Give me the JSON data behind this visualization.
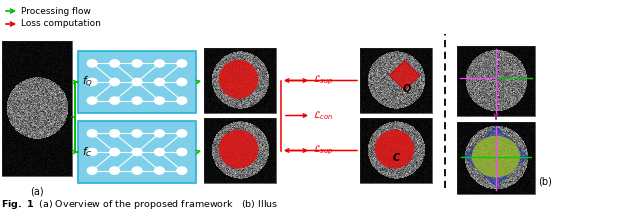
{
  "fig_width": 6.4,
  "fig_height": 2.16,
  "dpi": 100,
  "bg_color": "#ffffff",
  "net_color": "#7ecfea",
  "net_border": "#29afd4",
  "green": "#00bb00",
  "red": "#ee0000",
  "legend_items": [
    {
      "label": "Processing flow",
      "color": "#00bb00"
    },
    {
      "label": "Loss computation",
      "color": "#ee0000"
    }
  ],
  "label_fQ": "$f_Q$",
  "label_fC": "$f_C$",
  "label_a": "(a)",
  "label_b": "(b)",
  "sep_color": "#000000",
  "purple": "#993399"
}
